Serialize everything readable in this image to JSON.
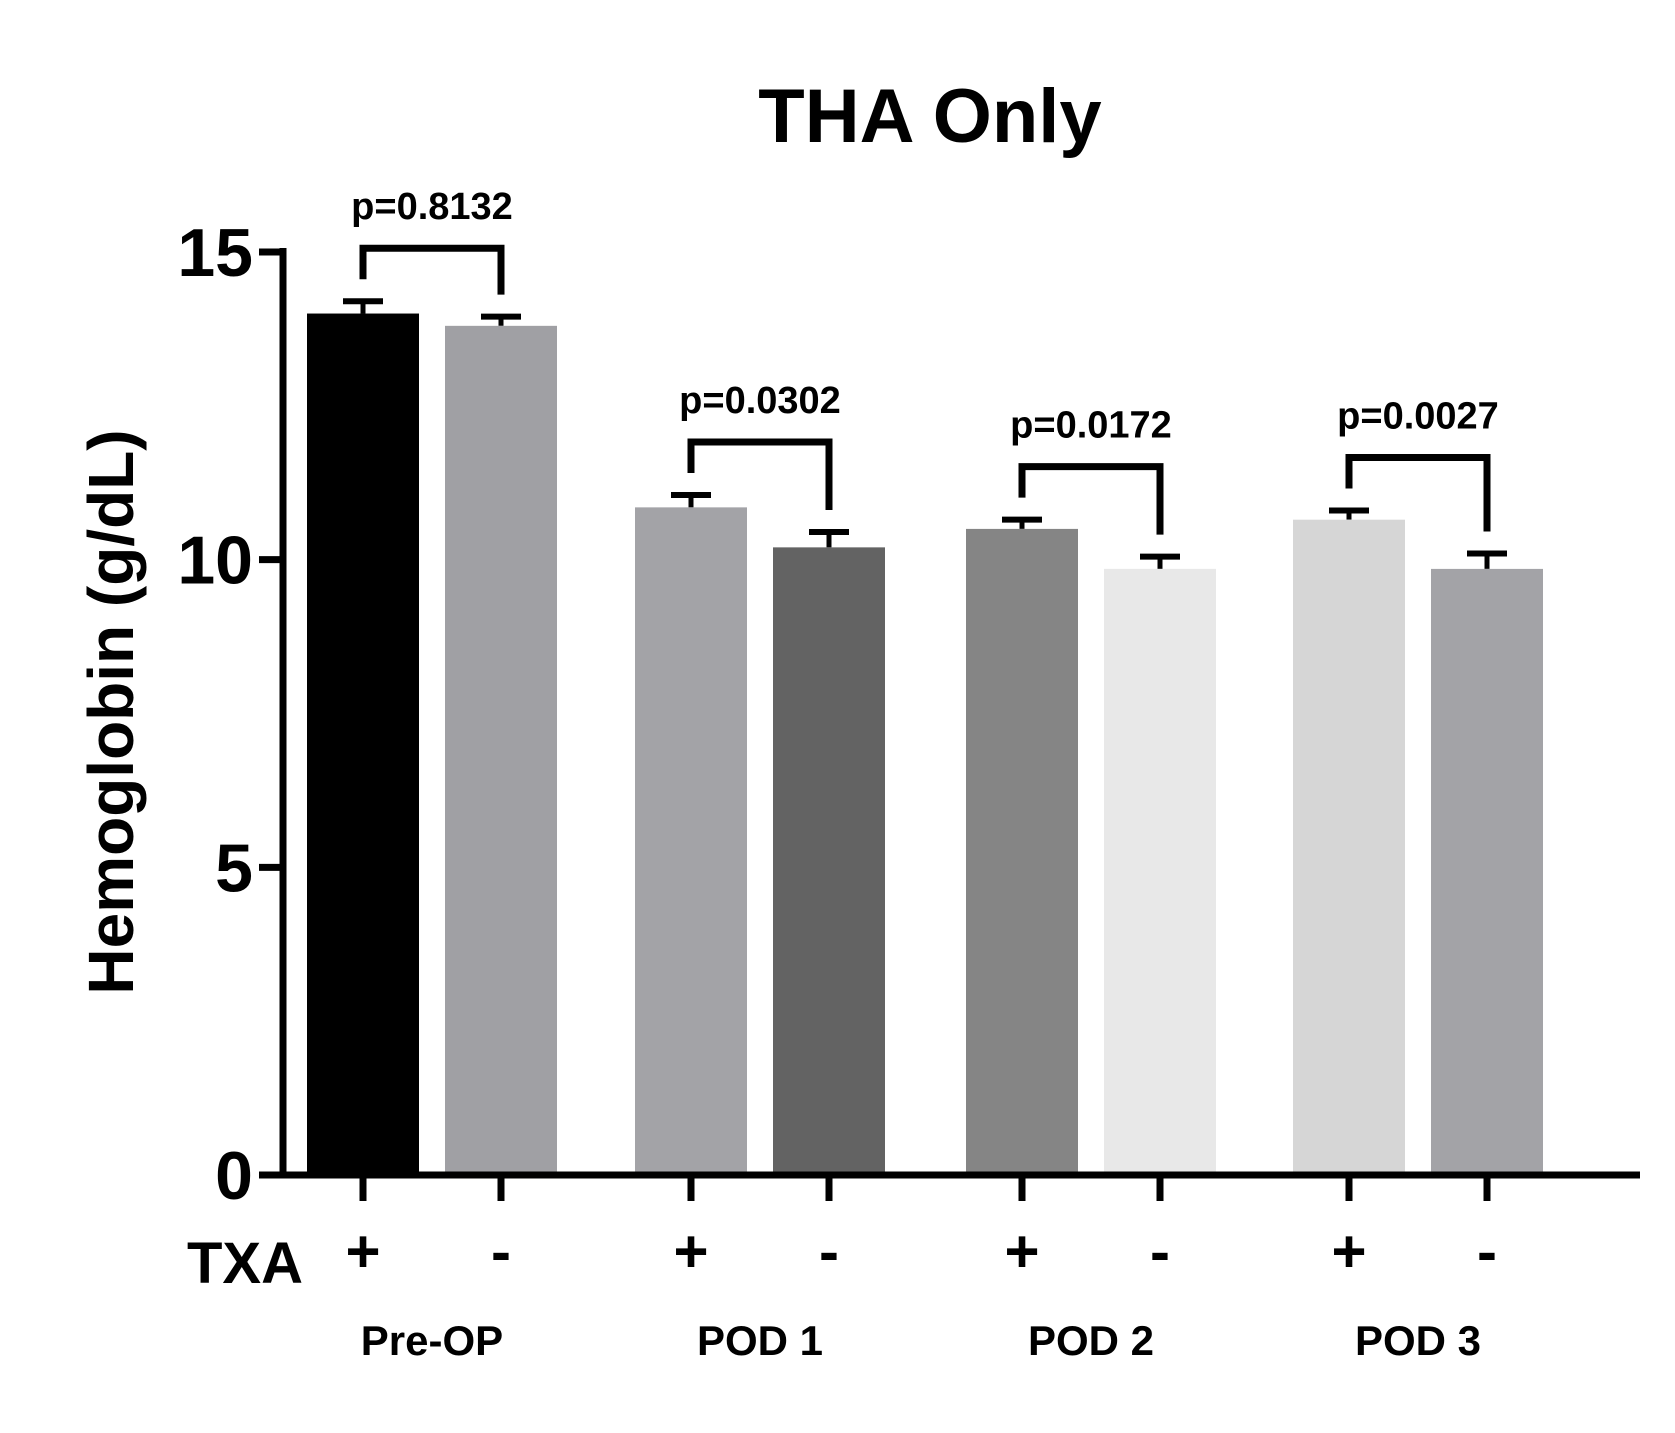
{
  "chart_data": {
    "type": "bar",
    "title": "THA Only",
    "ylabel": "Hemoglobin (g/dL)",
    "xlabel": "",
    "ylim": [
      0,
      15
    ],
    "yticks": [
      "0",
      "5",
      "10",
      "15"
    ],
    "row_label": "TXA",
    "groups": [
      {
        "label": "Pre-OP",
        "p_value": "p=0.8132",
        "bars": [
          {
            "txa": "+",
            "value": 14.0,
            "error": 0.2,
            "color": "#000000"
          },
          {
            "txa": "-",
            "value": 13.8,
            "error": 0.15,
            "color": "#a0a0a4"
          }
        ]
      },
      {
        "label": "POD 1",
        "p_value": "p=0.0302",
        "bars": [
          {
            "txa": "+",
            "value": 10.85,
            "error": 0.2,
            "color": "#a3a3a7"
          },
          {
            "txa": "-",
            "value": 10.2,
            "error": 0.25,
            "color": "#636363"
          }
        ]
      },
      {
        "label": "POD 2",
        "p_value": "p=0.0172",
        "bars": [
          {
            "txa": "+",
            "value": 10.5,
            "error": 0.15,
            "color": "#858585"
          },
          {
            "txa": "-",
            "value": 9.85,
            "error": 0.2,
            "color": "#e8e8e8"
          }
        ]
      },
      {
        "label": "POD 3",
        "p_value": "p=0.0027",
        "bars": [
          {
            "txa": "+",
            "value": 10.65,
            "error": 0.15,
            "color": "#d6d6d6"
          },
          {
            "txa": "-",
            "value": 9.85,
            "error": 0.25,
            "color": "#a3a3a7"
          }
        ]
      }
    ]
  }
}
